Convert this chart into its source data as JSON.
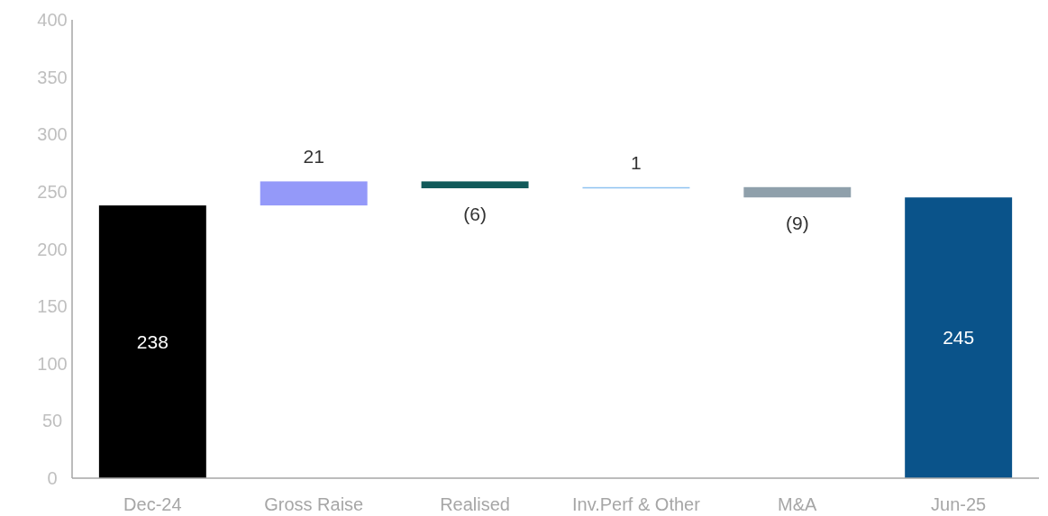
{
  "chart_data": {
    "type": "bar",
    "categories": [
      "Dec-24",
      "Gross Raise",
      "Realised",
      "Inv.Perf & Other",
      "M&A",
      "Jun-25"
    ],
    "values": [
      238,
      21,
      -6,
      1,
      -9,
      245
    ],
    "base": [
      0,
      238,
      259,
      253,
      254,
      0
    ],
    "colors": [
      "#000000",
      "#9499f9",
      "#115a5a",
      "#8fc3f0",
      "#8fa0ab",
      "#0a538a"
    ],
    "value_labels": [
      "238",
      "21",
      "(6)",
      "1",
      "(9)",
      "245"
    ],
    "ylim": [
      0,
      400
    ],
    "yticks": [
      0,
      50,
      100,
      150,
      200,
      250,
      300,
      350,
      400
    ],
    "grid": false
  }
}
